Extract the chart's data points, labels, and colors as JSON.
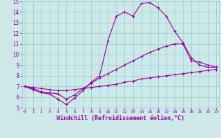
{
  "lines": [
    {
      "x": [
        0,
        1,
        2,
        3,
        4,
        5,
        6,
        7,
        8,
        9,
        10,
        11,
        12,
        13,
        14,
        15,
        16,
        17,
        18,
        19,
        20,
        21,
        22,
        23
      ],
      "y": [
        7.0,
        6.7,
        6.4,
        6.3,
        5.8,
        5.3,
        5.9,
        6.6,
        7.4,
        8.0,
        11.3,
        13.6,
        14.0,
        13.6,
        14.8,
        14.9,
        14.4,
        13.6,
        12.2,
        11.1,
        9.7,
        9.0,
        8.8,
        8.8
      ],
      "color": "#990099",
      "marker": "+"
    },
    {
      "x": [
        0,
        1,
        2,
        3,
        4,
        5,
        6,
        7,
        8,
        9,
        10,
        11,
        12,
        13,
        14,
        15,
        16,
        17,
        18,
        19,
        20,
        21,
        22,
        23
      ],
      "y": [
        7.0,
        6.8,
        6.5,
        6.4,
        6.3,
        5.8,
        6.2,
        6.8,
        7.3,
        7.8,
        8.2,
        8.6,
        9.0,
        9.4,
        9.8,
        10.2,
        10.5,
        10.8,
        11.0,
        11.0,
        9.4,
        9.3,
        9.0,
        8.8
      ],
      "color": "#990099",
      "marker": "+"
    },
    {
      "x": [
        0,
        1,
        2,
        3,
        4,
        5,
        6,
        7,
        8,
        9,
        10,
        11,
        12,
        13,
        14,
        15,
        16,
        17,
        18,
        19,
        20,
        21,
        22,
        23
      ],
      "y": [
        7.0,
        6.9,
        6.8,
        6.7,
        6.6,
        6.6,
        6.7,
        6.8,
        6.9,
        7.0,
        7.1,
        7.2,
        7.4,
        7.5,
        7.7,
        7.8,
        7.9,
        8.0,
        8.1,
        8.2,
        8.3,
        8.4,
        8.5,
        8.6
      ],
      "color": "#990099",
      "marker": "+"
    }
  ],
  "xlabel": "Windchill (Refroidissement éolien,°C)",
  "xlim": [
    0,
    23
  ],
  "ylim": [
    5,
    15
  ],
  "xticks": [
    0,
    1,
    2,
    3,
    4,
    5,
    6,
    7,
    8,
    9,
    10,
    11,
    12,
    13,
    14,
    15,
    16,
    17,
    18,
    19,
    20,
    21,
    22,
    23
  ],
  "yticks": [
    5,
    6,
    7,
    8,
    9,
    10,
    11,
    12,
    13,
    14,
    15
  ],
  "background_color": "#cce8e8",
  "grid_color": "#99cccc",
  "line_color": "#990099",
  "xlabel_color": "#990099",
  "tick_color": "#990099",
  "xtick_fontsize": 4.5,
  "ytick_fontsize": 5.5,
  "xlabel_fontsize": 6.0
}
